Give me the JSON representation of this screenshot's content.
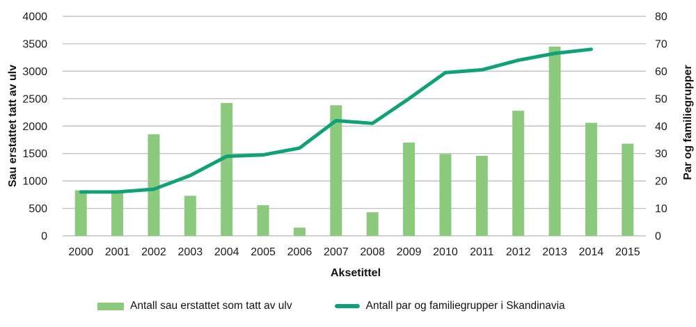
{
  "chart_data": {
    "type": "bar+line",
    "xlabel": "Aksetittel",
    "ylabel_left": "Sau erstattet tatt av ulv",
    "ylabel_right": "Par og familiegrupper",
    "categories": [
      "2000",
      "2001",
      "2002",
      "2003",
      "2004",
      "2005",
      "2006",
      "2007",
      "2008",
      "2009",
      "2010",
      "2011",
      "2012",
      "2013",
      "2014",
      "2015"
    ],
    "series": [
      {
        "name": "Antall sau erstattet som tatt av ulv",
        "type": "bar",
        "axis": "left",
        "color": "#8bc97d",
        "values": [
          830,
          800,
          1850,
          730,
          2420,
          560,
          150,
          2380,
          430,
          1700,
          1490,
          1460,
          2280,
          3450,
          2060,
          1680
        ]
      },
      {
        "name": "Antall par og familiegrupper i Skandinavia",
        "type": "line",
        "axis": "right",
        "color": "#10a178",
        "values": [
          16,
          16,
          17,
          22,
          29,
          29.5,
          32,
          42,
          41,
          50,
          59.5,
          60.5,
          64,
          66.5,
          68,
          null
        ]
      }
    ],
    "left_axis": {
      "min": 0,
      "max": 4000,
      "step": 500,
      "ticks": [
        "0",
        "500",
        "1000",
        "1500",
        "2000",
        "2500",
        "3000",
        "3500",
        "4000"
      ]
    },
    "right_axis": {
      "min": 0,
      "max": 80,
      "step": 10,
      "ticks": [
        "0",
        "10",
        "20",
        "30",
        "40",
        "50",
        "60",
        "70",
        "80"
      ]
    },
    "grid": true,
    "grid_color": "#c3c3c3",
    "legend_position": "bottom"
  }
}
